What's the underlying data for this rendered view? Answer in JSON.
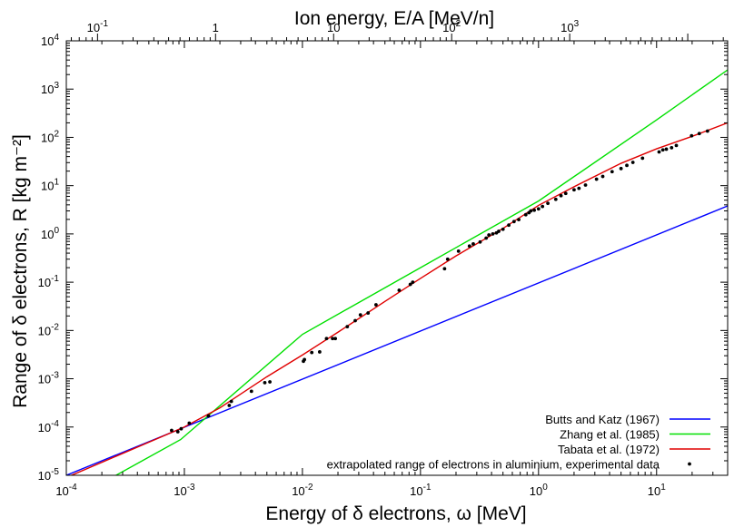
{
  "chart_data": {
    "type": "line",
    "x_scale": "log",
    "y_scale": "log",
    "xlim": [
      0.0001,
      40
    ],
    "ylim": [
      1e-05,
      10000
    ],
    "xlabel": "Energy of δ electrons, ω [MeV]",
    "ylabel": "Range of δ electrons, R  [kg m⁻²]",
    "x2label": "Ion energy, E/A [MeV/n]",
    "x2lim": [
      0.0544,
      21778
    ],
    "x_ticks": [
      {
        "v": 0.0001,
        "m": "10",
        "e": "-4"
      },
      {
        "v": 0.001,
        "m": "10",
        "e": "-3"
      },
      {
        "v": 0.01,
        "m": "10",
        "e": "-2"
      },
      {
        "v": 0.1,
        "m": "10",
        "e": "-1"
      },
      {
        "v": 1,
        "m": "10",
        "e": "0"
      },
      {
        "v": 10,
        "m": "10",
        "e": "1"
      }
    ],
    "x2_ticks": [
      {
        "v": 0.1,
        "m": "10",
        "e": "-1"
      },
      {
        "v": 1,
        "m": "1",
        "e": ""
      },
      {
        "v": 10,
        "m": "10",
        "e": ""
      },
      {
        "v": 100,
        "m": "10",
        "e": "2"
      },
      {
        "v": 1000,
        "m": "10",
        "e": "3"
      }
    ],
    "y_ticks": [
      {
        "v": 1e-05,
        "m": "10",
        "e": "-5"
      },
      {
        "v": 0.0001,
        "m": "10",
        "e": "-4"
      },
      {
        "v": 0.001,
        "m": "10",
        "e": "-3"
      },
      {
        "v": 0.01,
        "m": "10",
        "e": "-2"
      },
      {
        "v": 0.1,
        "m": "10",
        "e": "-1"
      },
      {
        "v": 1,
        "m": "10",
        "e": "0"
      },
      {
        "v": 10,
        "m": "10",
        "e": "1"
      },
      {
        "v": 100,
        "m": "10",
        "e": "2"
      },
      {
        "v": 1000,
        "m": "10",
        "e": "3"
      },
      {
        "v": 10000,
        "m": "10",
        "e": "4"
      }
    ],
    "grid": false,
    "legend_position": "bottom-right",
    "series": [
      {
        "name": "Butts and Katz (1967)",
        "color": "#0000ff",
        "style": "line",
        "x": [
          0.0001,
          40
        ],
        "y": [
          1e-05,
          3.8
        ]
      },
      {
        "name": "Zhang et al. (1985)",
        "color": "#00e000",
        "style": "line",
        "x": [
          0.0001,
          0.00093,
          0.01,
          0.1,
          1,
          10,
          40
        ],
        "y": [
          2.7e-06,
          5.5e-05,
          0.0083,
          0.2,
          4.8,
          230,
          2500
        ]
      },
      {
        "name": "Tabata et al. (1972)",
        "color": "#e00000",
        "style": "line",
        "x": [
          0.0001,
          0.001,
          0.002,
          0.005,
          0.01,
          0.02,
          0.05,
          0.1,
          0.2,
          0.5,
          1,
          2,
          5,
          10,
          20,
          40
        ],
        "y": [
          9e-06,
          0.0001,
          0.00025,
          0.0011,
          0.0031,
          0.0092,
          0.04,
          0.12,
          0.35,
          1.3,
          3.9,
          9.5,
          29,
          58,
          105,
          200
        ]
      },
      {
        "name": "extrapolated range of electrons in aluminium, experimental data",
        "color": "#000000",
        "style": "dots",
        "x": [
          0.00078,
          0.00088,
          0.00094,
          0.0011,
          0.0016,
          0.0024,
          0.0025,
          0.0037,
          0.0048,
          0.0053,
          0.0102,
          0.0104,
          0.012,
          0.014,
          0.016,
          0.018,
          0.019,
          0.024,
          0.028,
          0.031,
          0.036,
          0.042,
          0.066,
          0.082,
          0.086,
          0.16,
          0.17,
          0.21,
          0.26,
          0.28,
          0.32,
          0.36,
          0.38,
          0.41,
          0.44,
          0.46,
          0.5,
          0.56,
          0.62,
          0.68,
          0.78,
          0.83,
          0.86,
          0.92,
          1.0,
          1.08,
          1.2,
          1.4,
          1.55,
          1.7,
          2.0,
          2.2,
          2.5,
          3.1,
          3.5,
          4.2,
          5.0,
          5.6,
          6.3,
          7.6,
          10.5,
          11.3,
          12.1,
          13.4,
          14.7,
          19.8,
          23.0,
          27.0
        ],
        "y": [
          8.5e-05,
          8e-05,
          9.2e-05,
          0.00012,
          0.00017,
          0.00028,
          0.00034,
          0.00055,
          0.00083,
          0.00086,
          0.0023,
          0.0025,
          0.0035,
          0.0036,
          0.0068,
          0.0068,
          0.0068,
          0.012,
          0.016,
          0.021,
          0.023,
          0.034,
          0.068,
          0.09,
          0.1,
          0.19,
          0.3,
          0.44,
          0.56,
          0.62,
          0.68,
          0.82,
          0.95,
          1.0,
          1.05,
          1.13,
          1.25,
          1.52,
          1.8,
          1.98,
          2.5,
          2.75,
          3.0,
          3.1,
          3.3,
          3.7,
          4.3,
          5.2,
          6.2,
          6.9,
          8.2,
          8.8,
          10.3,
          13.6,
          15.5,
          19.5,
          22.6,
          26.3,
          30.3,
          37.0,
          50.0,
          55.0,
          57.0,
          61.0,
          68.0,
          108.0,
          120.0,
          135.0
        ]
      }
    ]
  }
}
